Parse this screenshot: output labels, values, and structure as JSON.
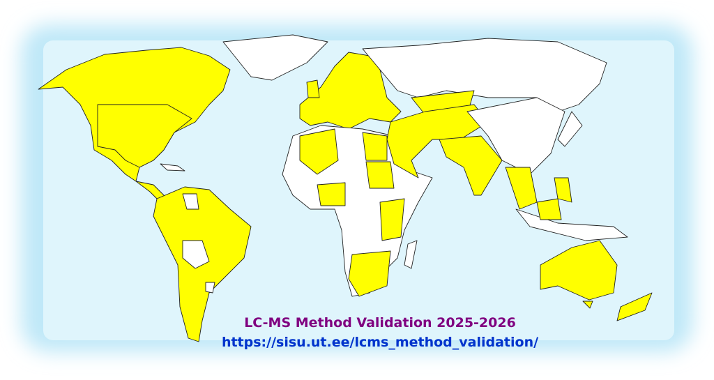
{
  "title": "LC-MS Method Validation  2025-2026",
  "url": "https://sisu.ut.ee/lcms_method_validation/"
}
